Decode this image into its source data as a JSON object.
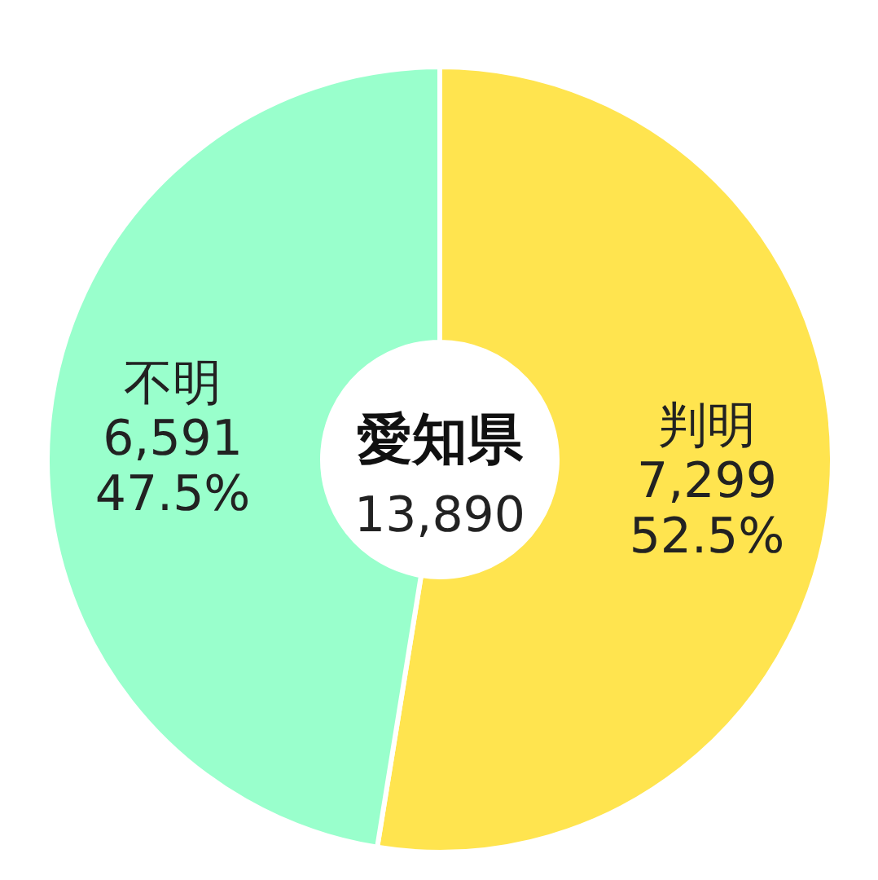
{
  "chart_data": {
    "type": "donut",
    "title": "愛知県",
    "annotations": [
      "13,890"
    ],
    "categories": [
      "判明",
      "不明"
    ],
    "values": [
      7299,
      6591
    ],
    "value_labels": [
      "7,299\n52.5%",
      "6,591\n47.5%"
    ],
    "colors": [
      "#ffe44f",
      "#99ffcc"
    ]
  }
}
